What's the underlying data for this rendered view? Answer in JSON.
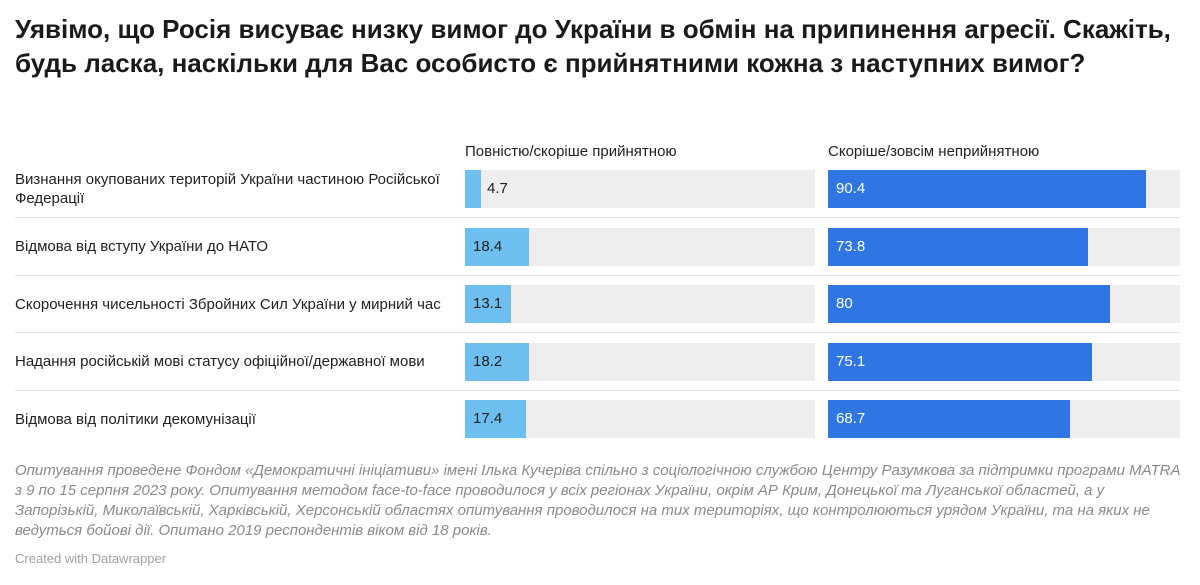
{
  "title": "Уявімо, що Росія висуває низку вимог до України в обмін на припинення агресії. Скажіть, будь ласка, наскільки для Вас особисто є прийнятними кожна з наступних вимог?",
  "notes": "Опитування проведене Фондом «Демократичні ініціативи» імені Ілька Кучеріва спільно з соціологічною службою Центру Разумкова за підтримки програми MATRA з 9 по 15 серпня 2023 року. Опитування методом face-to-face проводилося у всіх регіонах України, окрім АР Крим, Донецької та Луганської областей, а у Запорізькій, Миколаївській, Харківській, Херсонській областях опитування проводилося на тих територіях, що контролюються урядом України, та на яких не ведуться бойові дії. Опитано 2019 респондентів віком від 18 років.",
  "credit": "Created with Datawrapper",
  "colors": {
    "acceptable": "#6cbfee",
    "unacceptable": "#2f76e4",
    "track": "#eeeeee"
  },
  "chart_data": {
    "type": "bar",
    "categories": [
      "Визнання окупованих територій України частиною Російської Федерації",
      "Відмова від вступу України до НАТО",
      "Скорочення чисельності Збройних Сил України у мирний час",
      "Надання російській мові статусу офіційної/державної мови",
      "Відмова від політики декомунізації"
    ],
    "series": [
      {
        "name": "Повністю/скоріше прийнятною",
        "values": [
          4.7,
          18.4,
          13.1,
          18.2,
          17.4
        ]
      },
      {
        "name": "Скоріше/зовсім неприйнятною",
        "values": [
          90.4,
          73.8,
          80,
          75.1,
          68.7
        ]
      }
    ],
    "xlim": [
      0,
      100
    ],
    "grid": false,
    "legend": "column-headers"
  }
}
